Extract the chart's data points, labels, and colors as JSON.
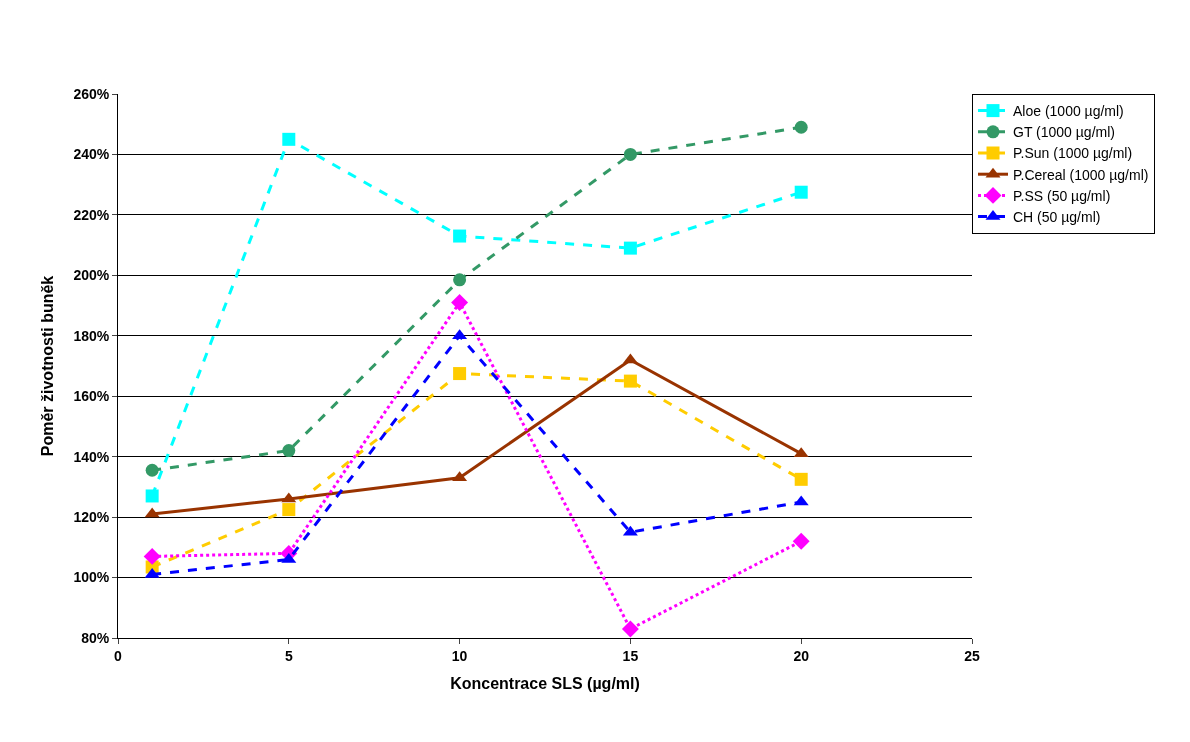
{
  "chart_data": {
    "type": "line",
    "xlabel": "Koncentrace SLS (µg/ml)",
    "ylabel": "Poměr životnosti buněk",
    "x": [
      1,
      5,
      10,
      15,
      20
    ],
    "series": [
      {
        "name": "Aloe (1000 µg/ml)",
        "color": "#00ffff",
        "marker": "square",
        "line_style": "dashed",
        "values": [
          127,
          245,
          213,
          209,
          227.5
        ]
      },
      {
        "name": "GT (1000 µg/ml)",
        "color": "#339966",
        "marker": "circle",
        "line_style": "dashed",
        "values": [
          135.5,
          142,
          198.5,
          240,
          249
        ]
      },
      {
        "name": "P.Sun (1000 µg/ml)",
        "color": "#ffcc00",
        "marker": "square",
        "line_style": "dashed",
        "values": [
          103.5,
          122.5,
          167.5,
          165,
          132.5
        ]
      },
      {
        "name": "P.Cereal (1000 µg/ml)",
        "color": "#993300",
        "marker": "triangle",
        "line_style": "solid",
        "values": [
          121,
          126,
          133,
          172,
          141
        ]
      },
      {
        "name": "P.SS (50 µg/ml)",
        "color": "#ff00ff",
        "marker": "diamond",
        "line_style": "dotted",
        "values": [
          107,
          108,
          191,
          83,
          112
        ]
      },
      {
        "name": "CH (50 µg/ml)",
        "color": "#0000ff",
        "marker": "triangle",
        "line_style": "dashed",
        "values": [
          101,
          106,
          180,
          115,
          125
        ]
      }
    ],
    "xlim": [
      0,
      25
    ],
    "xticks": [
      0,
      5,
      10,
      15,
      20,
      25
    ],
    "ylim": [
      80,
      260
    ],
    "yticks": [
      {
        "value": 80,
        "label": "80%"
      },
      {
        "value": 100,
        "label": "100%"
      },
      {
        "value": 120,
        "label": "120%"
      },
      {
        "value": 140,
        "label": "140%"
      },
      {
        "value": 160,
        "label": "160%"
      },
      {
        "value": 180,
        "label": "180%"
      },
      {
        "value": 200,
        "label": "200%"
      },
      {
        "value": 220,
        "label": "220%"
      },
      {
        "value": 240,
        "label": "240%"
      },
      {
        "value": 260,
        "label": "260%"
      }
    ],
    "grid": "y",
    "legend": "top right"
  }
}
